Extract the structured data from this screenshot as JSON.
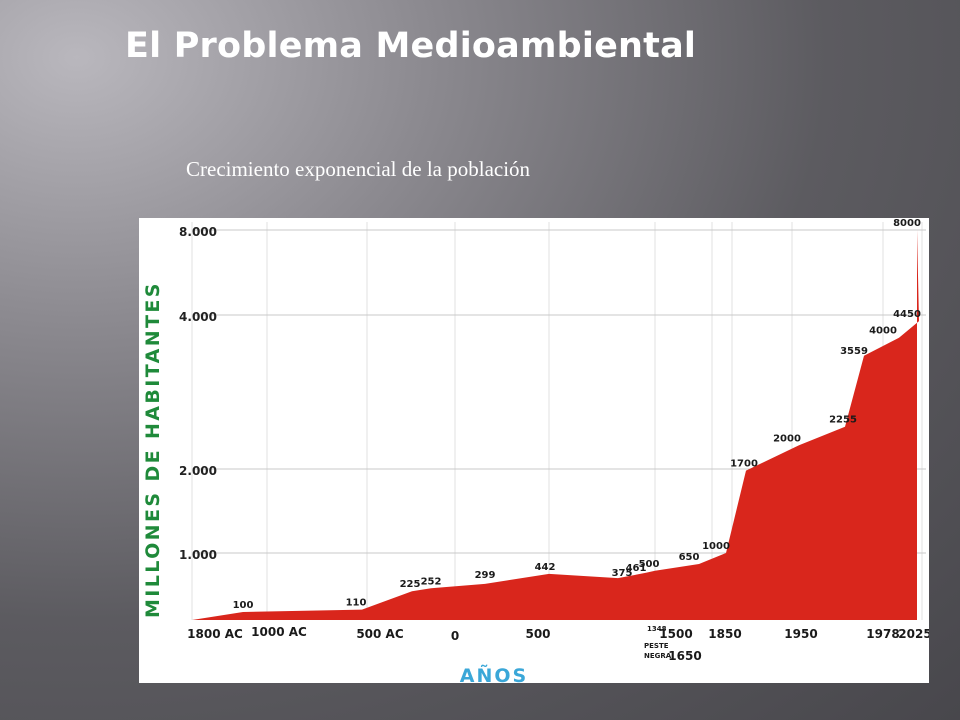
{
  "slide": {
    "title": "El Problema Medioambiental",
    "subtitle": "Crecimiento exponencial de la población"
  },
  "colors": {
    "area": "#d9261c",
    "grid": "#c8c8c8",
    "ytitle": "#1f8a3a",
    "xtitle": "#3aa7d8"
  },
  "chart_data": {
    "type": "area",
    "title": "",
    "ylabel": "Millones de Habitantes",
    "xlabel": "Años",
    "y_scale": "log",
    "ylim": [
      0,
      8000
    ],
    "grid": true,
    "y_ticks": [
      "8.000",
      "4.000",
      "2.000",
      "1.000"
    ],
    "x_ticks": [
      "1800 AC",
      "1000 AC",
      "500 AC",
      "0",
      "500",
      "1500",
      "1650",
      "1850",
      "1950",
      "1978",
      "2025"
    ],
    "annotation": {
      "year": "1348",
      "text_line1": "PESTE",
      "text_line2": "NEGRA"
    },
    "series": [
      {
        "values": [
          {
            "year": "1800 AC",
            "value": null,
            "label": ""
          },
          {
            "year": "1000 AC",
            "value": 100,
            "label": "100"
          },
          {
            "year": "500 AC",
            "value": 110,
            "label": "110"
          },
          {
            "year": "200 AC",
            "value": 225,
            "label": "225"
          },
          {
            "year": "0",
            "value": 252,
            "label": "252"
          },
          {
            "year": "500",
            "value": 299,
            "label": "299"
          },
          {
            "year": "1300",
            "value": 442,
            "label": "442"
          },
          {
            "year": "1348",
            "value": 375,
            "label": "375"
          },
          {
            "year": "1500",
            "value": 461,
            "label": "461"
          },
          {
            "year": "1650",
            "value": 500,
            "label": "500"
          },
          {
            "year": "1700",
            "value": 650,
            "label": "650"
          },
          {
            "year": "1800",
            "value": 1000,
            "label": "1000"
          },
          {
            "year": "1850",
            "value": 1700,
            "label": "1700"
          },
          {
            "year": "1950",
            "value": 2000,
            "label": "2000"
          },
          {
            "year": "1960",
            "value": 2255,
            "label": "2255"
          },
          {
            "year": "1978",
            "value": 3559,
            "label": "3559"
          },
          {
            "year": "1990",
            "value": 4000,
            "label": "4000"
          },
          {
            "year": "2000",
            "value": 4450,
            "label": "4450"
          },
          {
            "year": "2025",
            "value": 8000,
            "label": "8000"
          }
        ]
      }
    ]
  }
}
